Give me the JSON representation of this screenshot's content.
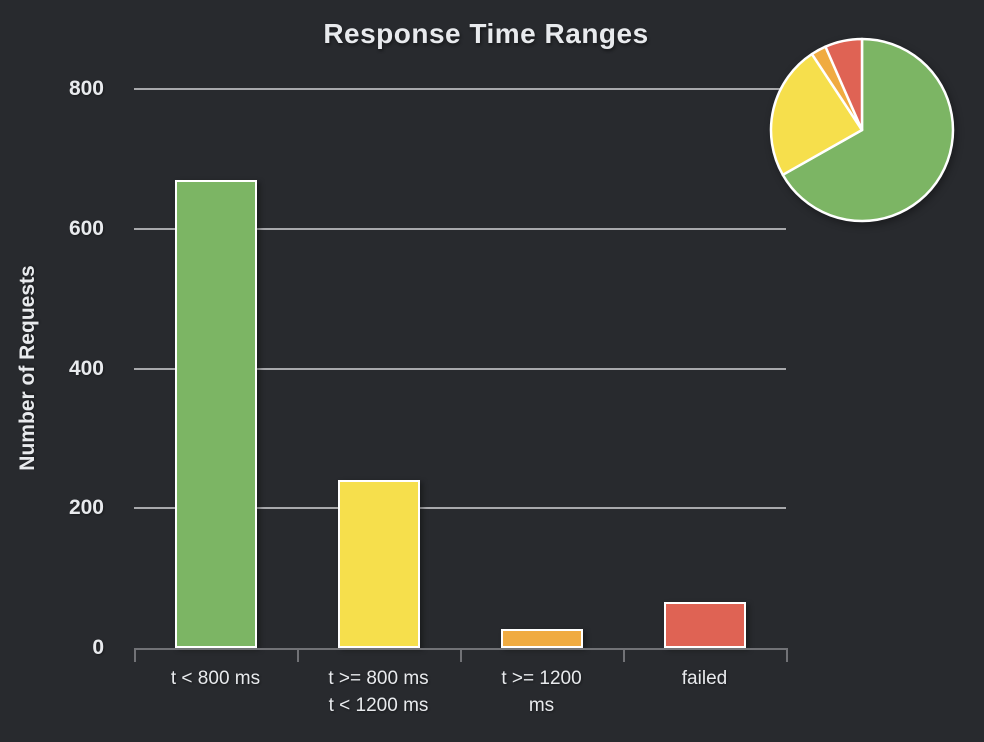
{
  "page": {
    "background": "#282a2e"
  },
  "chart_data": [
    {
      "type": "bar",
      "title": "Response Time Ranges",
      "xlabel": "",
      "ylabel": "Number of Requests",
      "categories": [
        "t < 800 ms",
        "t >= 800 ms\nt < 1200 ms",
        "t >= 1200\nms",
        "failed"
      ],
      "values": [
        670,
        240,
        27,
        66
      ],
      "colors": [
        "#7cb564",
        "#f6df4c",
        "#f0ab41",
        "#df6354"
      ],
      "ylim": [
        0,
        800
      ],
      "yticks": [
        0,
        200,
        400,
        600,
        800
      ],
      "grid": true,
      "grid_color": "#a8a9ac",
      "axis_color": "#717276",
      "text_color": "#e8eaed",
      "legend": "none"
    },
    {
      "type": "pie",
      "position": "top-right",
      "start_angle_deg": 0,
      "direction": "clockwise",
      "categories": [
        "t < 800 ms",
        "t >= 800 ms, t < 1200 ms",
        "t >= 1200 ms",
        "failed"
      ],
      "values": [
        670,
        240,
        27,
        66
      ],
      "colors": [
        "#7cb564",
        "#f6df4c",
        "#f0ab41",
        "#df6354"
      ],
      "stroke": "#ffffff"
    }
  ]
}
